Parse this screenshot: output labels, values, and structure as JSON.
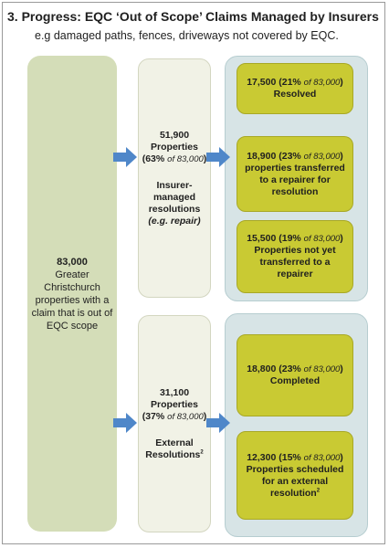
{
  "title": "3.  Progress: EQC ‘Out of Scope’ Claims Managed by Insurers",
  "subtitle": "e.g damaged paths, fences, driveways not covered by EQC.",
  "total": {
    "number": "83,000",
    "description": "Greater Christchurch properties with a claim that is out of EQC scope"
  },
  "insurer_managed": {
    "count": "51,900",
    "unit": "Properties",
    "pct": "63%",
    "of_label": "of 83,000",
    "title": "Insurer-managed resolutions",
    "example": "(e.g. repair)"
  },
  "external": {
    "count": "31,100",
    "unit": "Properties",
    "pct": "37%",
    "of_label": "of 83,000",
    "title": "External Resolutions",
    "footnote": "2"
  },
  "insurer_outcomes": [
    {
      "count": "17,500",
      "pct": "21%",
      "of_label": "of 83,000",
      "label": "Resolved"
    },
    {
      "count": "18,900",
      "pct": "23%",
      "of_label": "of 83,000",
      "label": "properties transferred to a repairer for resolution"
    },
    {
      "count": "15,500",
      "pct": "19%",
      "of_label": "of 83,000",
      "label": "Properties not yet transferred to a repairer"
    }
  ],
  "external_outcomes": [
    {
      "count": "18,800",
      "pct": "23%",
      "of_label": "of 83,000",
      "label": "Completed",
      "footnote": ""
    },
    {
      "count": "12,300",
      "pct": "15%",
      "of_label": "of 83,000",
      "label": "Properties scheduled for an external resolution",
      "footnote": "2"
    }
  ],
  "colors": {
    "arrow": "#4f87c9",
    "total_box": "#d4ddb8",
    "outcome_box": "#c9ca33",
    "group_panel": "#d7e4e6"
  }
}
